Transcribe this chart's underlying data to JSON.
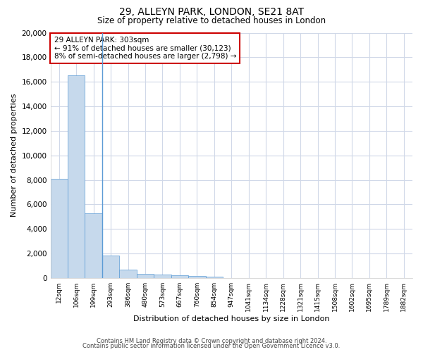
{
  "title1": "29, ALLEYN PARK, LONDON, SE21 8AT",
  "title2": "Size of property relative to detached houses in London",
  "xlabel": "Distribution of detached houses by size in London",
  "ylabel": "Number of detached properties",
  "categories": [
    "12sqm",
    "106sqm",
    "199sqm",
    "293sqm",
    "386sqm",
    "480sqm",
    "573sqm",
    "667sqm",
    "760sqm",
    "854sqm",
    "947sqm",
    "1041sqm",
    "1134sqm",
    "1228sqm",
    "1321sqm",
    "1415sqm",
    "1508sqm",
    "1602sqm",
    "1695sqm",
    "1789sqm",
    "1882sqm"
  ],
  "values": [
    8100,
    16500,
    5300,
    1850,
    700,
    350,
    270,
    220,
    160,
    130,
    0,
    0,
    0,
    0,
    0,
    0,
    0,
    0,
    0,
    0,
    0
  ],
  "bar_color": "#c6d9ec",
  "bar_edge_color": "#5b9bd5",
  "annotation_text": "29 ALLEYN PARK: 303sqm\n← 91% of detached houses are smaller (30,123)\n8% of semi-detached houses are larger (2,798) →",
  "annotation_box_color": "#ffffff",
  "annotation_box_edge_color": "#cc0000",
  "vline_x_index": 2,
  "ylim": [
    0,
    20000
  ],
  "yticks": [
    0,
    2000,
    4000,
    6000,
    8000,
    10000,
    12000,
    14000,
    16000,
    18000,
    20000
  ],
  "footer_line1": "Contains HM Land Registry data © Crown copyright and database right 2024.",
  "footer_line2": "Contains public sector information licensed under the Open Government Licence v3.0.",
  "bg_color": "#ffffff",
  "plot_bg_color": "#ffffff",
  "grid_color": "#d0d8e8"
}
